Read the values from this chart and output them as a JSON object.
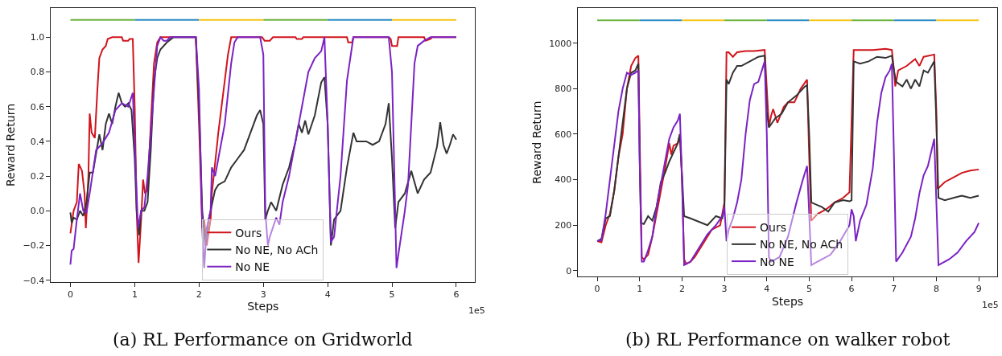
{
  "chart_data": [
    {
      "type": "line",
      "title": "(a) RL Performance on Gridworld",
      "xlabel": "Steps",
      "ylabel": "Reward Return",
      "annotations": [
        "1e5"
      ],
      "legend": "bottom",
      "xlim": [
        -0.3,
        6.29
      ],
      "ylim": [
        -0.41,
        1.168
      ],
      "xticks": [
        0,
        1,
        2,
        3,
        4,
        5,
        6
      ],
      "yticks": [
        {
          "value": -0.4,
          "label": "−0.4"
        },
        {
          "value": -0.2,
          "label": "−0.2"
        },
        {
          "value": 0,
          "label": "0.0"
        },
        0.2,
        0.4,
        0.6,
        0.8,
        {
          "value": 1,
          "label": "1.0"
        }
      ],
      "series": [
        {
          "color": "#6cb33f",
          "x": [
            0,
            1,
            2,
            3,
            4
          ],
          "values": [
            1.1,
            1.1,
            null,
            1.1,
            1.1
          ]
        },
        {
          "color": "#2b8cc4",
          "x": [
            1,
            2,
            3,
            4,
            5
          ],
          "values": [
            1.1,
            1.1,
            null,
            1.1,
            1.1
          ]
        },
        {
          "color": "#f5c518",
          "x": [
            2,
            3,
            4,
            5,
            6
          ],
          "values": [
            1.1,
            1.1,
            null,
            1.1,
            1.1
          ]
        },
        {
          "name": "Ours",
          "color": "#d0141c",
          "x": [
            0,
            0.05,
            0.1,
            0.13,
            0.18,
            0.22,
            0.24,
            0.28,
            0.3,
            0.33,
            0.38,
            0.42,
            0.45,
            0.5,
            0.55,
            0.58,
            0.65,
            0.8,
            0.82,
            0.9,
            0.92,
            0.97,
            1.0,
            1.03,
            1.06,
            1.1,
            1.13,
            1.16,
            1.2,
            1.25,
            1.3,
            1.35,
            1.4,
            1.9,
            1.95,
            2.0,
            2.05,
            2.08,
            2.12,
            2.18,
            2.2,
            2.3,
            2.35,
            2.4,
            2.45,
            2.5,
            2.98,
            3.02,
            3.1,
            3.15,
            3.5,
            3.52,
            3.6,
            3.62,
            4.3,
            4.32,
            4.38,
            4.4,
            4.95,
            4.98,
            5.0,
            5.08,
            5.1,
            5.5,
            5.52,
            5.6,
            5.62,
            6
          ],
          "values": [
            -0.13,
            0.0,
            0.05,
            0.27,
            0.23,
            0.1,
            -0.1,
            0.2,
            0.56,
            0.45,
            0.42,
            0.7,
            0.88,
            0.93,
            0.95,
            0.99,
            1.0,
            1.0,
            0.98,
            0.98,
            0.99,
            0.99,
            0.6,
            0.0,
            -0.3,
            -0.05,
            0.18,
            0.1,
            0.12,
            0.5,
            0.85,
            0.97,
            1.0,
            1.0,
            1.0,
            0.5,
            -0.1,
            -0.05,
            -0.2,
            -0.05,
            0.1,
            0.45,
            0.6,
            0.75,
            0.9,
            1.0,
            1.0,
            0.98,
            0.98,
            1.0,
            1.0,
            0.99,
            0.99,
            1.0,
            1.0,
            0.97,
            0.97,
            1.0,
            1.0,
            0.99,
            0.95,
            0.95,
            1.0,
            1.0,
            0.98,
            0.99,
            1.0,
            1.0
          ]
        },
        {
          "name": "No NE, No ACh",
          "color": "#333333",
          "x": [
            0,
            0.02,
            0.05,
            0.1,
            0.15,
            0.2,
            0.25,
            0.3,
            0.35,
            0.4,
            0.45,
            0.5,
            0.55,
            0.6,
            0.65,
            0.7,
            0.75,
            0.8,
            0.85,
            0.9,
            0.95,
            1.0,
            1.03,
            1.07,
            1.1,
            1.15,
            1.2,
            1.25,
            1.3,
            1.35,
            1.4,
            1.5,
            1.6,
            1.95,
            2.0,
            2.05,
            2.1,
            2.15,
            2.25,
            2.3,
            2.4,
            2.5,
            2.6,
            2.7,
            2.8,
            2.9,
            2.95,
            3.0,
            3.03,
            3.07,
            3.12,
            3.2,
            3.3,
            3.4,
            3.5,
            3.55,
            3.6,
            3.65,
            3.7,
            3.8,
            3.9,
            3.95,
            4.0,
            4.05,
            4.1,
            4.2,
            4.3,
            4.4,
            4.45,
            4.6,
            4.7,
            4.8,
            4.9,
            4.95,
            5.0,
            5.05,
            5.1,
            5.2,
            5.3,
            5.4,
            5.5,
            5.6,
            5.7,
            5.75,
            5.8,
            5.85,
            5.9,
            5.95,
            6.0
          ],
          "values": [
            -0.01,
            -0.07,
            -0.04,
            -0.05,
            0.0,
            -0.03,
            0.05,
            0.22,
            0.22,
            0.33,
            0.44,
            0.35,
            0.5,
            0.56,
            0.5,
            0.6,
            0.68,
            0.62,
            0.6,
            0.62,
            0.58,
            0.3,
            0.0,
            -0.14,
            0.0,
            0.0,
            0.05,
            0.35,
            0.75,
            0.88,
            0.93,
            0.97,
            1.0,
            1.0,
            0.6,
            0.0,
            -0.2,
            -0.05,
            0.12,
            0.15,
            0.17,
            0.25,
            0.3,
            0.35,
            0.45,
            0.55,
            0.58,
            0.5,
            -0.05,
            0.0,
            0.05,
            0.0,
            0.15,
            0.25,
            0.4,
            0.5,
            0.45,
            0.52,
            0.44,
            0.55,
            0.74,
            0.77,
            0.5,
            -0.2,
            -0.05,
            0.0,
            0.25,
            0.45,
            0.4,
            0.4,
            0.38,
            0.4,
            0.5,
            0.62,
            0.3,
            -0.1,
            0.05,
            0.1,
            0.23,
            0.1,
            0.18,
            0.22,
            0.37,
            0.51,
            0.38,
            0.33,
            0.38,
            0.44,
            0.41
          ]
        },
        {
          "name": "No NE",
          "color": "#7b22c4",
          "x": [
            0,
            0.02,
            0.05,
            0.1,
            0.15,
            0.2,
            0.25,
            0.3,
            0.4,
            0.5,
            0.6,
            0.7,
            0.8,
            0.9,
            0.97,
            1.0,
            1.05,
            1.1,
            1.15,
            1.2,
            1.3,
            1.35,
            1.4,
            1.45,
            1.5,
            1.55,
            1.95,
            2.0,
            2.05,
            2.08,
            2.12,
            2.18,
            2.2,
            2.25,
            2.3,
            2.4,
            2.5,
            2.55,
            2.6,
            2.95,
            3.0,
            3.03,
            3.07,
            3.1,
            3.2,
            3.25,
            3.3,
            3.4,
            3.5,
            3.6,
            3.7,
            3.8,
            3.9,
            3.95,
            4.0,
            4.05,
            4.1,
            4.2,
            4.3,
            4.4,
            4.95,
            5.0,
            5.05,
            5.07,
            5.1,
            5.2,
            5.25,
            5.3,
            5.35,
            5.4,
            5.5,
            5.6,
            6
          ],
          "values": [
            -0.31,
            -0.23,
            -0.22,
            -0.05,
            0.1,
            0.0,
            -0.01,
            0.1,
            0.35,
            0.39,
            0.45,
            0.58,
            0.62,
            0.6,
            0.68,
            0.4,
            -0.1,
            0.0,
            0.02,
            0.2,
            0.7,
            0.95,
            1.0,
            0.98,
            0.98,
            1.0,
            1.0,
            0.7,
            -0.1,
            -0.33,
            -0.1,
            0.0,
            0.25,
            0.2,
            0.3,
            0.5,
            0.85,
            0.97,
            1.0,
            1.0,
            0.9,
            0.0,
            -0.2,
            -0.15,
            -0.04,
            -0.08,
            0.05,
            0.2,
            0.4,
            0.6,
            0.8,
            0.88,
            0.92,
            1.0,
            0.5,
            -0.18,
            -0.15,
            0.2,
            0.75,
            1.0,
            1.0,
            0.8,
            0.0,
            -0.33,
            -0.25,
            0.0,
            0.15,
            0.5,
            0.85,
            0.95,
            0.98,
            1.0,
            1.0
          ]
        }
      ]
    },
    {
      "type": "line",
      "title": "(b) RL Performance on walker robot",
      "xlabel": "Steps",
      "ylabel": "Reward Return",
      "annotations": [
        "1e5"
      ],
      "legend": "bottom",
      "xlim": [
        -0.45,
        9.43
      ],
      "ylim": [
        -26,
        1154
      ],
      "xticks": [
        0,
        1,
        2,
        3,
        4,
        5,
        6,
        7,
        8,
        9
      ],
      "yticks": [
        0,
        200,
        400,
        600,
        800,
        1000
      ],
      "series": [
        {
          "color": "#6cb33f",
          "x": [
            0,
            1,
            2,
            3,
            4,
            5,
            6,
            7
          ],
          "values": [
            1100,
            1100,
            null,
            1100,
            1100,
            null,
            1100,
            1100
          ]
        },
        {
          "color": "#2b8cc4",
          "x": [
            1,
            2,
            3,
            4,
            5,
            6,
            7,
            8
          ],
          "values": [
            1100,
            1100,
            null,
            1100,
            1100,
            null,
            1100,
            1100
          ]
        },
        {
          "color": "#f5c518",
          "x": [
            2,
            3,
            4,
            5,
            6,
            7,
            8,
            9
          ],
          "values": [
            1100,
            1100,
            null,
            1100,
            1100,
            null,
            1100,
            1100
          ]
        },
        {
          "name": "Ours",
          "color": "#d0141c",
          "x": [
            0,
            0.1,
            0.2,
            0.3,
            0.4,
            0.5,
            0.6,
            0.7,
            0.8,
            0.9,
            0.97,
            1.0,
            1.05,
            1.1,
            1.2,
            1.3,
            1.4,
            1.5,
            1.6,
            1.7,
            1.75,
            1.8,
            1.9,
            1.95,
            2.0,
            2.05,
            2.1,
            2.2,
            2.3,
            2.5,
            2.7,
            2.9,
            3.0,
            3.05,
            3.1,
            3.2,
            3.3,
            3.5,
            3.7,
            3.95,
            4.0,
            4.05,
            4.1,
            4.15,
            4.25,
            4.4,
            4.5,
            4.65,
            4.8,
            4.95,
            5.0,
            5.05,
            5.2,
            5.4,
            5.6,
            5.8,
            5.95,
            6.05,
            6.3,
            6.5,
            6.8,
            6.95,
            7.0,
            7.03,
            7.1,
            7.3,
            7.5,
            7.6,
            7.7,
            7.95,
            8.0,
            8.03,
            8.2,
            8.4,
            8.6,
            8.8,
            9.0
          ],
          "values": [
            130,
            125,
            200,
            250,
            350,
            500,
            600,
            800,
            900,
            935,
            945,
            600,
            60,
            50,
            70,
            150,
            250,
            350,
            450,
            560,
            510,
            550,
            560,
            600,
            400,
            50,
            30,
            40,
            60,
            120,
            180,
            200,
            300,
            960,
            960,
            940,
            960,
            965,
            965,
            970,
            800,
            630,
            680,
            710,
            650,
            720,
            740,
            740,
            800,
            840,
            500,
            220,
            250,
            270,
            300,
            320,
            345,
            970,
            970,
            970,
            975,
            970,
            880,
            810,
            880,
            900,
            930,
            900,
            940,
            950,
            700,
            360,
            390,
            410,
            430,
            440,
            445
          ]
        },
        {
          "name": "No NE, No ACh",
          "color": "#333333",
          "x": [
            0,
            0.1,
            0.2,
            0.3,
            0.4,
            0.5,
            0.6,
            0.7,
            0.8,
            0.9,
            0.97,
            1.0,
            1.03,
            1.1,
            1.2,
            1.3,
            1.4,
            1.5,
            1.6,
            1.7,
            1.8,
            1.9,
            1.95,
            2.05,
            2.2,
            2.4,
            2.6,
            2.8,
            2.95,
            3.0,
            3.05,
            3.1,
            3.2,
            3.3,
            3.4,
            3.6,
            3.8,
            3.95,
            4.0,
            4.05,
            4.2,
            4.35,
            4.5,
            4.7,
            4.9,
            4.95,
            5.0,
            5.05,
            5.3,
            5.45,
            5.6,
            5.8,
            5.95,
            6.0,
            6.05,
            6.2,
            6.4,
            6.6,
            6.8,
            6.95,
            7.0,
            7.05,
            7.2,
            7.3,
            7.4,
            7.5,
            7.6,
            7.7,
            7.8,
            7.95,
            8.0,
            8.05,
            8.2,
            8.4,
            8.6,
            8.8,
            9.0
          ],
          "values": [
            130,
            140,
            230,
            240,
            350,
            500,
            650,
            800,
            870,
            880,
            910,
            500,
            210,
            205,
            240,
            220,
            280,
            390,
            430,
            480,
            520,
            560,
            600,
            240,
            230,
            215,
            200,
            240,
            230,
            270,
            840,
            820,
            870,
            900,
            900,
            920,
            940,
            945,
            700,
            630,
            670,
            690,
            740,
            770,
            810,
            815,
            600,
            300,
            280,
            260,
            300,
            310,
            305,
            310,
            920,
            910,
            920,
            940,
            935,
            945,
            880,
            830,
            810,
            840,
            800,
            840,
            810,
            880,
            870,
            920,
            650,
            320,
            310,
            320,
            330,
            320,
            330
          ]
        },
        {
          "name": "No NE",
          "color": "#7b22c4",
          "x": [
            0,
            0.1,
            0.2,
            0.3,
            0.4,
            0.5,
            0.6,
            0.7,
            0.8,
            0.9,
            0.97,
            1.0,
            1.05,
            1.1,
            1.2,
            1.3,
            1.4,
            1.5,
            1.6,
            1.7,
            1.8,
            1.9,
            1.95,
            2.0,
            2.05,
            2.2,
            2.4,
            2.6,
            2.8,
            2.95,
            3.0,
            3.05,
            3.1,
            3.2,
            3.3,
            3.4,
            3.5,
            3.6,
            3.7,
            3.8,
            3.9,
            3.95,
            4.0,
            4.05,
            4.1,
            4.3,
            4.5,
            4.7,
            4.85,
            4.95,
            5.0,
            5.05,
            5.3,
            5.5,
            5.7,
            5.95,
            6.0,
            6.05,
            6.1,
            6.2,
            6.35,
            6.5,
            6.6,
            6.7,
            6.8,
            6.9,
            6.95,
            7.0,
            7.05,
            7.2,
            7.4,
            7.5,
            7.6,
            7.7,
            7.8,
            7.9,
            7.95,
            8.0,
            8.05,
            8.3,
            8.5,
            8.7,
            8.9,
            9.0
          ],
          "values": [
            130,
            135,
            250,
            400,
            550,
            700,
            800,
            870,
            860,
            870,
            880,
            500,
            40,
            40,
            90,
            150,
            280,
            380,
            480,
            580,
            630,
            660,
            690,
            400,
            25,
            40,
            100,
            160,
            200,
            240,
            280,
            130,
            180,
            230,
            300,
            400,
            600,
            750,
            820,
            830,
            890,
            920,
            600,
            60,
            40,
            60,
            150,
            300,
            400,
            460,
            250,
            25,
            50,
            70,
            120,
            200,
            270,
            240,
            130,
            220,
            290,
            450,
            650,
            780,
            850,
            880,
            910,
            500,
            40,
            80,
            150,
            230,
            340,
            420,
            460,
            540,
            580,
            300,
            25,
            50,
            80,
            130,
            170,
            210
          ]
        }
      ]
    }
  ]
}
